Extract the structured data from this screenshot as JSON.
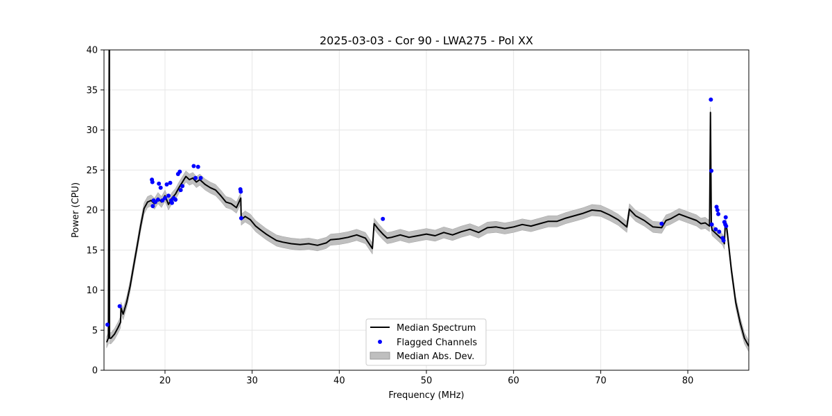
{
  "chart_data": {
    "type": "line",
    "title": "2025-03-03 - Cor 90 - LWA275 - Pol XX",
    "xlabel": "Frequency (MHz)",
    "ylabel": "Power (CPU)",
    "xlim": [
      13,
      87
    ],
    "ylim": [
      0,
      40
    ],
    "xticks": [
      20,
      30,
      40,
      50,
      60,
      70,
      80
    ],
    "yticks": [
      0,
      5,
      10,
      15,
      20,
      25,
      30,
      35,
      40
    ],
    "grid": true,
    "legend_position": "bottom-center",
    "legend": [
      "Median Spectrum",
      "Flagged Channels",
      "Median Abs. Dev."
    ],
    "colors": {
      "median": "#000000",
      "flagged": "#0000ff",
      "mad_fill": "#bfbfbf",
      "grid": "#e6e6e6"
    },
    "series": [
      {
        "name": "Median Spectrum",
        "x": [
          13.3,
          13.5,
          13.6,
          13.62,
          13.64,
          13.8,
          14.2,
          14.6,
          14.9,
          14.95,
          15.2,
          15.6,
          16.0,
          16.4,
          16.8,
          17.2,
          17.6,
          18.0,
          18.4,
          18.8,
          19.2,
          19.6,
          20.0,
          20.4,
          20.8,
          21.2,
          21.6,
          22.0,
          22.4,
          22.8,
          23.2,
          23.6,
          24.0,
          24.6,
          25.2,
          25.8,
          26.4,
          27.0,
          27.6,
          28.2,
          28.7,
          28.75,
          29.2,
          29.8,
          30.4,
          31.0,
          31.6,
          32.2,
          32.8,
          33.5,
          34.5,
          35.5,
          36.5,
          37.5,
          38.5,
          39.0,
          40.0,
          41.0,
          42.0,
          43.0,
          43.8,
          44.0,
          44.5,
          45.0,
          45.5,
          46.0,
          47.0,
          48.0,
          49.0,
          50.0,
          51.0,
          52.0,
          53.0,
          54.0,
          55.0,
          56.0,
          57.0,
          58.0,
          59.0,
          60.0,
          61.0,
          62.0,
          63.0,
          64.0,
          65.0,
          66.0,
          67.0,
          68.0,
          69.0,
          70.0,
          71.0,
          72.0,
          73.0,
          73.3,
          74.0,
          75.0,
          76.0,
          77.0,
          77.5,
          78.0,
          79.0,
          80.0,
          81.0,
          81.5,
          82.0,
          82.5,
          82.6,
          82.7,
          82.8,
          83.0,
          83.5,
          84.0,
          84.2,
          84.3,
          84.5,
          85.0,
          85.5,
          86.0,
          86.5,
          87.0
        ],
        "y": [
          3.5,
          4.0,
          40.0,
          40.0,
          4.0,
          4.0,
          4.5,
          5.3,
          6.0,
          7.8,
          7.0,
          8.5,
          10.5,
          13.0,
          15.5,
          18.0,
          20.2,
          21.0,
          21.2,
          20.8,
          21.5,
          21.0,
          21.8,
          20.7,
          21.5,
          22.0,
          22.8,
          23.5,
          24.2,
          23.8,
          24.0,
          23.5,
          23.8,
          23.2,
          22.8,
          22.5,
          21.8,
          21.0,
          20.8,
          20.3,
          21.5,
          18.8,
          19.2,
          18.8,
          18.0,
          17.5,
          17.0,
          16.6,
          16.2,
          16.0,
          15.8,
          15.7,
          15.8,
          15.6,
          15.9,
          16.3,
          16.4,
          16.6,
          16.9,
          16.5,
          15.2,
          18.3,
          17.6,
          17.0,
          16.5,
          16.6,
          16.9,
          16.6,
          16.8,
          17.0,
          16.8,
          17.2,
          16.9,
          17.3,
          17.6,
          17.2,
          17.8,
          17.9,
          17.7,
          17.9,
          18.2,
          18.0,
          18.3,
          18.6,
          18.6,
          19.0,
          19.3,
          19.6,
          20.0,
          19.9,
          19.4,
          18.8,
          17.9,
          20.1,
          19.3,
          18.7,
          17.9,
          17.8,
          18.7,
          18.9,
          19.5,
          19.1,
          18.7,
          18.3,
          18.4,
          18.0,
          32.2,
          18.0,
          17.5,
          17.3,
          16.8,
          16.3,
          15.8,
          18.5,
          17.5,
          12.5,
          8.5,
          6.0,
          4.0,
          3.0
        ]
      },
      {
        "name": "Flagged Channels",
        "x": [
          13.4,
          14.8,
          18.5,
          18.55,
          18.6,
          18.7,
          18.9,
          19.2,
          19.3,
          19.5,
          19.7,
          20.0,
          20.2,
          20.4,
          20.6,
          20.7,
          20.8,
          21.0,
          21.2,
          21.5,
          21.7,
          21.8,
          22.0,
          23.3,
          23.5,
          23.8,
          24.1,
          28.65,
          28.7,
          28.75,
          45.0,
          77.0,
          82.65,
          82.7,
          82.75,
          83.2,
          83.3,
          83.4,
          83.5,
          83.6,
          84.0,
          84.1,
          84.2,
          84.3,
          84.35,
          84.4
        ],
        "y": [
          5.7,
          8.0,
          23.8,
          23.5,
          20.5,
          21.2,
          21.0,
          21.3,
          23.3,
          22.8,
          21.2,
          21.5,
          23.2,
          21.8,
          23.4,
          21.2,
          20.9,
          21.5,
          21.3,
          24.5,
          24.8,
          22.5,
          23.0,
          25.5,
          24.0,
          25.4,
          24.0,
          22.6,
          22.3,
          19.0,
          18.9,
          18.3,
          33.8,
          24.9,
          18.2,
          17.6,
          20.4,
          20.0,
          19.5,
          17.3,
          16.5,
          16.2,
          18.5,
          18.2,
          19.1,
          18.0
        ]
      }
    ],
    "mad_band": {
      "name": "Median Abs. Dev.",
      "width_in_power_units": 0.7
    }
  }
}
